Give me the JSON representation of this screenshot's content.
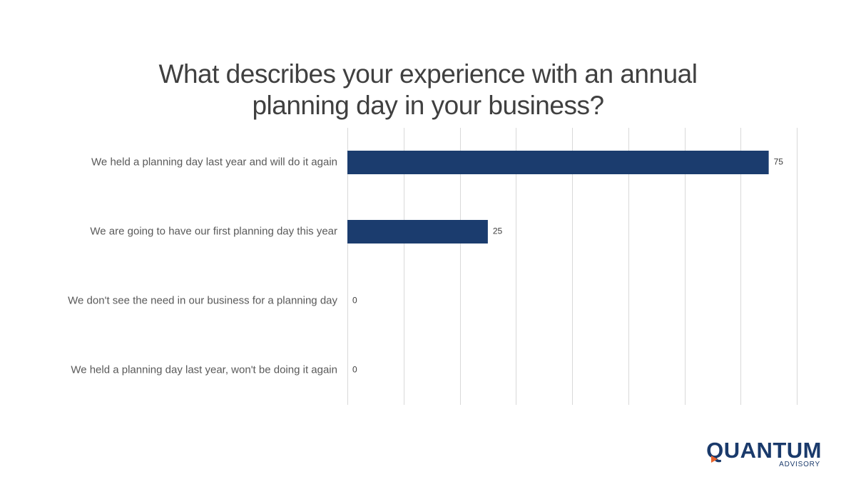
{
  "chart_data": {
    "type": "bar",
    "orientation": "horizontal",
    "title_lines": [
      "What describes your experience with an annual",
      "planning day in your business?"
    ],
    "categories": [
      "We held a planning day last year and will do it again",
      "We are going to have our first planning day this year",
      "We don't see the need in our business for a planning day",
      "We held a planning day last year, won't be doing it again"
    ],
    "values": [
      75,
      25,
      0,
      0
    ],
    "xlim": [
      0,
      80
    ],
    "grid_step": 10,
    "grid": true,
    "legend": "none",
    "bar_color": "#1b3c6e",
    "grid_color": "#d9d9d9"
  },
  "logo": {
    "name": "QUANTUM",
    "tagline": "ADVISORY",
    "accent_color": "#e8632b",
    "brand_color": "#1a3a6b"
  }
}
